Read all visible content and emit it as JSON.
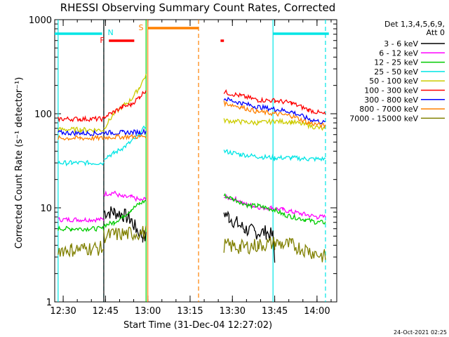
{
  "chart_data": {
    "type": "line",
    "title": "RHESSI Observing Summary Count Rates, Corrected",
    "xlabel": "Start Time (31-Dec-04 12:27:02)",
    "ylabel": "Corrected Count Rate (s⁻¹ detector⁻¹)",
    "yscale": "log",
    "ylim": [
      1,
      1000
    ],
    "xlim": [
      "12:27",
      "14:07"
    ],
    "x_unit": "minutes",
    "x_ticks": [
      "12:30",
      "12:45",
      "13:00",
      "13:15",
      "13:30",
      "13:45",
      "14:00"
    ],
    "y_ticks": [
      "1",
      "10",
      "100",
      "1000"
    ],
    "timestamp": "24-Oct-2021 02:25",
    "legend_header": [
      "Det 1,3,4,5,6,9,",
      "Att 0"
    ],
    "legend_position": "right",
    "series": [
      {
        "name": "3 - 6 keV",
        "color": "#000000",
        "segments": [
          [
            [
              12.74,
              9.0
            ],
            [
              12.8,
              9.0
            ],
            [
              12.85,
              8.5
            ],
            [
              12.9,
              7.5
            ],
            [
              12.93,
              6.0
            ],
            [
              12.97,
              5.0
            ],
            [
              12.99,
              4.8
            ]
          ],
          [
            [
              13.45,
              9.0
            ],
            [
              13.48,
              8.0
            ],
            [
              13.52,
              7.0
            ],
            [
              13.57,
              6.0
            ],
            [
              13.63,
              5.5
            ],
            [
              13.7,
              5.5
            ],
            [
              13.74,
              5.0
            ],
            [
              13.75,
              3.0
            ]
          ]
        ]
      },
      {
        "name": "6 - 12 keV",
        "color": "#ff00ff",
        "segments": [
          [
            [
              12.47,
              7.5
            ],
            [
              12.6,
              7.5
            ],
            [
              12.74,
              7.5
            ]
          ],
          [
            [
              12.74,
              14.0
            ],
            [
              12.8,
              14.5
            ],
            [
              12.85,
              13.0
            ],
            [
              12.9,
              13.0
            ],
            [
              12.96,
              12.0
            ],
            [
              12.99,
              12.5
            ]
          ],
          [
            [
              13.45,
              13.0
            ],
            [
              13.52,
              12.5
            ],
            [
              13.57,
              11.0
            ],
            [
              13.62,
              10.5
            ],
            [
              13.68,
              10.0
            ],
            [
              13.73,
              10.0
            ],
            [
              13.8,
              9.5
            ],
            [
              13.86,
              9.0
            ],
            [
              13.93,
              8.5
            ],
            [
              14.0,
              8.0
            ],
            [
              14.05,
              8.0
            ]
          ]
        ]
      },
      {
        "name": "12 - 25 keV",
        "color": "#00cc00",
        "segments": [
          [
            [
              12.47,
              6.0
            ],
            [
              12.55,
              6.0
            ],
            [
              12.65,
              6.0
            ],
            [
              12.74,
              6.0
            ]
          ],
          [
            [
              12.74,
              6.5
            ],
            [
              12.8,
              7.0
            ],
            [
              12.85,
              8.0
            ],
            [
              12.9,
              9.5
            ],
            [
              12.95,
              11.0
            ],
            [
              12.99,
              12.0
            ]
          ],
          [
            [
              13.45,
              13.5
            ],
            [
              13.5,
              12.5
            ],
            [
              13.55,
              11.5
            ],
            [
              13.6,
              10.5
            ],
            [
              13.65,
              10.5
            ],
            [
              13.7,
              10.0
            ],
            [
              13.75,
              9.5
            ],
            [
              13.8,
              8.5
            ],
            [
              13.86,
              8.0
            ],
            [
              13.93,
              7.5
            ],
            [
              14.0,
              7.0
            ],
            [
              14.05,
              7.0
            ]
          ]
        ]
      },
      {
        "name": "25 - 50 keV",
        "color": "#00e5e5",
        "segments": [
          [
            [
              12.47,
              30.0
            ],
            [
              12.55,
              30.0
            ],
            [
              12.65,
              30.0
            ],
            [
              12.74,
              30.0
            ]
          ],
          [
            [
              12.74,
              34.0
            ],
            [
              12.8,
              38.0
            ],
            [
              12.85,
              43.0
            ],
            [
              12.9,
              50.0
            ],
            [
              12.95,
              60.0
            ],
            [
              12.99,
              75.0
            ]
          ],
          [
            [
              13.45,
              40.0
            ],
            [
              13.55,
              37.0
            ],
            [
              13.65,
              35.0
            ],
            [
              13.75,
              34.0
            ],
            [
              13.85,
              34.0
            ],
            [
              13.95,
              33.0
            ],
            [
              14.05,
              33.0
            ]
          ]
        ]
      },
      {
        "name": "50 - 100 keV",
        "color": "#cccc00",
        "segments": [
          [
            [
              12.47,
              68.0
            ],
            [
              12.6,
              68.0
            ],
            [
              12.74,
              67.0
            ]
          ],
          [
            [
              12.74,
              70.0
            ],
            [
              12.8,
              100.0
            ],
            [
              12.85,
              120.0
            ],
            [
              12.9,
              140.0
            ],
            [
              12.95,
              190.0
            ],
            [
              12.99,
              260.0
            ]
          ],
          [
            [
              13.45,
              85.0
            ],
            [
              13.55,
              82.0
            ],
            [
              13.65,
              80.0
            ],
            [
              13.75,
              83.0
            ],
            [
              13.85,
              82.0
            ],
            [
              13.95,
              75.0
            ],
            [
              14.05,
              68.0
            ]
          ]
        ]
      },
      {
        "name": "100 - 300 keV",
        "color": "#ff0000",
        "segments": [
          [
            [
              12.47,
              88.0
            ],
            [
              12.6,
              88.0
            ],
            [
              12.74,
              88.0
            ]
          ],
          [
            [
              12.74,
              92.0
            ],
            [
              12.8,
              105.0
            ],
            [
              12.85,
              118.0
            ],
            [
              12.9,
              125.0
            ],
            [
              12.95,
              150.0
            ],
            [
              12.99,
              180.0
            ]
          ],
          [
            [
              13.45,
              170.0
            ],
            [
              13.55,
              155.0
            ],
            [
              13.65,
              140.0
            ],
            [
              13.75,
              138.0
            ],
            [
              13.85,
              130.0
            ],
            [
              13.95,
              110.0
            ],
            [
              14.05,
              98.0
            ]
          ]
        ]
      },
      {
        "name": "300 - 800 keV",
        "color": "#0000ff",
        "segments": [
          [
            [
              12.47,
              63.0
            ],
            [
              12.6,
              62.0
            ],
            [
              12.74,
              62.0
            ]
          ],
          [
            [
              12.74,
              63.0
            ],
            [
              12.85,
              63.0
            ],
            [
              12.95,
              64.0
            ],
            [
              12.99,
              65.0
            ]
          ],
          [
            [
              13.45,
              145.0
            ],
            [
              13.55,
              130.0
            ],
            [
              13.65,
              118.0
            ],
            [
              13.75,
              112.0
            ],
            [
              13.85,
              105.0
            ],
            [
              13.95,
              88.0
            ],
            [
              14.05,
              80.0
            ]
          ]
        ]
      },
      {
        "name": "800 - 7000 keV",
        "color": "#ff8000",
        "segments": [
          [
            [
              12.47,
              55.0
            ],
            [
              12.6,
              55.0
            ],
            [
              12.74,
              55.0
            ]
          ],
          [
            [
              12.74,
              56.0
            ],
            [
              12.85,
              57.0
            ],
            [
              12.95,
              57.0
            ],
            [
              12.99,
              58.0
            ]
          ],
          [
            [
              13.45,
              130.0
            ],
            [
              13.55,
              118.0
            ],
            [
              13.65,
              105.0
            ],
            [
              13.75,
              100.0
            ],
            [
              13.85,
              95.0
            ],
            [
              13.95,
              80.0
            ],
            [
              14.05,
              74.0
            ]
          ]
        ]
      },
      {
        "name": "7000 - 15000 keV",
        "color": "#808000",
        "segments": [
          [
            [
              12.47,
              3.6
            ],
            [
              12.55,
              3.6
            ],
            [
              12.65,
              3.7
            ],
            [
              12.74,
              3.7
            ]
          ],
          [
            [
              12.74,
              5.0
            ],
            [
              12.8,
              5.2
            ],
            [
              12.9,
              5.3
            ],
            [
              12.99,
              5.5
            ]
          ],
          [
            [
              13.45,
              4.0
            ],
            [
              13.55,
              3.8
            ],
            [
              13.65,
              4.0
            ],
            [
              13.75,
              4.2
            ],
            [
              13.85,
              4.0
            ],
            [
              13.95,
              3.5
            ],
            [
              14.05,
              3.0
            ]
          ]
        ]
      }
    ],
    "flags": [
      {
        "label": "N",
        "color": "#00e5e5",
        "x": [
          12.74
        ],
        "marks": [
          [
            12.45,
            12.73
          ],
          [
            13.74,
            14.07
          ]
        ]
      },
      {
        "label": "S",
        "color": "#ff8000",
        "x": [
          12.99,
          13.3
        ],
        "marks": [
          [
            13.0,
            13.3
          ]
        ]
      },
      {
        "label": "F",
        "color": "#ff0000",
        "x": [],
        "marks": [
          [
            12.77,
            12.92
          ],
          [
            13.43,
            13.45
          ]
        ]
      }
    ],
    "vlines": [
      {
        "x": 12.47,
        "color": "#00e5e5",
        "style": "solid"
      },
      {
        "x": 12.74,
        "color": "#00e5e5",
        "style": "dashed"
      },
      {
        "x": 12.74,
        "color": "#000000",
        "style": "solid"
      },
      {
        "x": 12.99,
        "color": "#00cc00",
        "style": "solid"
      },
      {
        "x": 13.0,
        "color": "#ff8000",
        "style": "solid"
      },
      {
        "x": 13.3,
        "color": "#ff8000",
        "style": "dashed"
      },
      {
        "x": 13.74,
        "color": "#00e5e5",
        "style": "solid"
      },
      {
        "x": 14.05,
        "color": "#00e5e5",
        "style": "dashed"
      }
    ]
  }
}
